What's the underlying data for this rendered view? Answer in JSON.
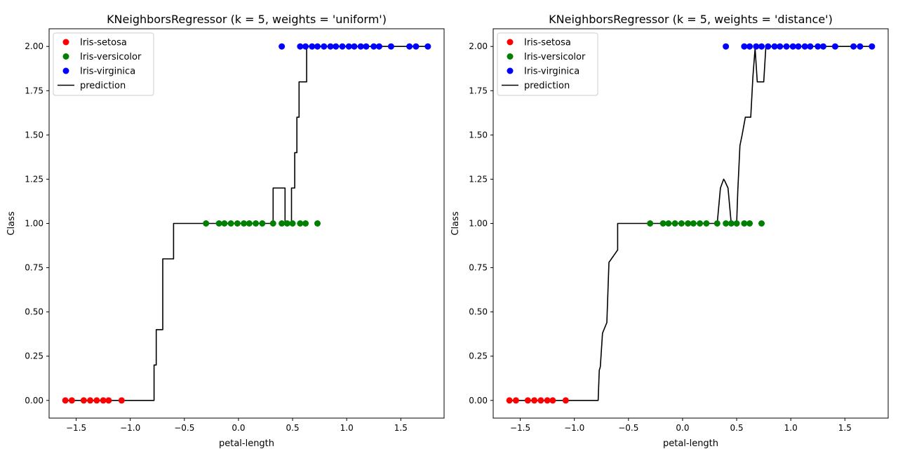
{
  "chart_data": [
    {
      "type": "scatter",
      "title": "KNeighborsRegressor (k = 5, weights = 'uniform')",
      "xlabel": "petal-length",
      "ylabel": "Class",
      "xlim": [
        -1.75,
        1.9
      ],
      "ylim": [
        -0.1,
        2.1
      ],
      "xticks": [
        -1.5,
        -1.0,
        -0.5,
        0.0,
        0.5,
        1.0,
        1.5
      ],
      "xtick_labels": [
        "−1.5",
        "−1.0",
        "−0.5",
        "0.0",
        "0.5",
        "1.0",
        "1.5"
      ],
      "yticks": [
        0.0,
        0.25,
        0.5,
        0.75,
        1.0,
        1.25,
        1.5,
        1.75,
        2.0
      ],
      "ytick_labels": [
        "0.00",
        "0.25",
        "0.50",
        "0.75",
        "1.00",
        "1.25",
        "1.50",
        "1.75",
        "2.00"
      ],
      "legend": [
        "Iris-setosa",
        "Iris-versicolor",
        "Iris-virginica",
        "prediction"
      ],
      "legend_position": "top-left",
      "grid": false,
      "series": [
        {
          "name": "Iris-setosa",
          "kind": "scatter",
          "color": "#ff0000",
          "x": [
            -1.6,
            -1.54,
            -1.43,
            -1.37,
            -1.31,
            -1.25,
            -1.2,
            -1.08
          ],
          "y": [
            0,
            0,
            0,
            0,
            0,
            0,
            0,
            0
          ]
        },
        {
          "name": "Iris-versicolor",
          "kind": "scatter",
          "color": "#008000",
          "x": [
            -0.3,
            -0.18,
            -0.13,
            -0.07,
            -0.01,
            0.05,
            0.1,
            0.16,
            0.22,
            0.32,
            0.4,
            0.45,
            0.5,
            0.57,
            0.62,
            0.73
          ],
          "y": [
            1,
            1,
            1,
            1,
            1,
            1,
            1,
            1,
            1,
            1,
            1,
            1,
            1,
            1,
            1,
            1
          ]
        },
        {
          "name": "Iris-virginica",
          "kind": "scatter",
          "color": "#0000ff",
          "x": [
            0.4,
            0.57,
            0.62,
            0.68,
            0.73,
            0.79,
            0.85,
            0.9,
            0.96,
            1.02,
            1.07,
            1.13,
            1.18,
            1.25,
            1.3,
            1.41,
            1.58,
            1.64,
            1.75
          ],
          "y": [
            2,
            2,
            2,
            2,
            2,
            2,
            2,
            2,
            2,
            2,
            2,
            2,
            2,
            2,
            2,
            2,
            2,
            2,
            2
          ]
        },
        {
          "name": "prediction",
          "kind": "line",
          "color": "#000000",
          "x": [
            -1.6,
            -0.78,
            -0.78,
            -0.76,
            -0.76,
            -0.7,
            -0.7,
            -0.6,
            -0.6,
            0.32,
            0.32,
            0.43,
            0.43,
            0.49,
            0.49,
            0.52,
            0.52,
            0.54,
            0.54,
            0.56,
            0.56,
            0.63,
            0.63,
            0.79,
            0.79,
            1.75
          ],
          "y": [
            0,
            0,
            0.2,
            0.2,
            0.4,
            0.4,
            0.8,
            0.8,
            1.0,
            1.0,
            1.2,
            1.2,
            1.0,
            1.0,
            1.2,
            1.2,
            1.4,
            1.4,
            1.6,
            1.6,
            1.8,
            1.8,
            2.0,
            2.0,
            2.0,
            2.0
          ]
        }
      ]
    },
    {
      "type": "scatter",
      "title": "KNeighborsRegressor (k = 5, weights = 'distance')",
      "xlabel": "petal-length",
      "ylabel": "Class",
      "xlim": [
        -1.75,
        1.9
      ],
      "ylim": [
        -0.1,
        2.1
      ],
      "xticks": [
        -1.5,
        -1.0,
        -0.5,
        0.0,
        0.5,
        1.0,
        1.5
      ],
      "xtick_labels": [
        "−1.5",
        "−1.0",
        "−0.5",
        "0.0",
        "0.5",
        "1.0",
        "1.5"
      ],
      "yticks": [
        0.0,
        0.25,
        0.5,
        0.75,
        1.0,
        1.25,
        1.5,
        1.75,
        2.0
      ],
      "ytick_labels": [
        "0.00",
        "0.25",
        "0.50",
        "0.75",
        "1.00",
        "1.25",
        "1.50",
        "1.75",
        "2.00"
      ],
      "legend": [
        "Iris-setosa",
        "Iris-versicolor",
        "Iris-virginica",
        "prediction"
      ],
      "legend_position": "top-left",
      "grid": false,
      "series": [
        {
          "name": "Iris-setosa",
          "kind": "scatter",
          "color": "#ff0000",
          "x": [
            -1.6,
            -1.54,
            -1.43,
            -1.37,
            -1.31,
            -1.25,
            -1.2,
            -1.08
          ],
          "y": [
            0,
            0,
            0,
            0,
            0,
            0,
            0,
            0
          ]
        },
        {
          "name": "Iris-versicolor",
          "kind": "scatter",
          "color": "#008000",
          "x": [
            -0.3,
            -0.18,
            -0.13,
            -0.07,
            -0.01,
            0.05,
            0.1,
            0.16,
            0.22,
            0.32,
            0.4,
            0.45,
            0.5,
            0.57,
            0.62,
            0.73
          ],
          "y": [
            1,
            1,
            1,
            1,
            1,
            1,
            1,
            1,
            1,
            1,
            1,
            1,
            1,
            1,
            1,
            1
          ]
        },
        {
          "name": "Iris-virginica",
          "kind": "scatter",
          "color": "#0000ff",
          "x": [
            0.4,
            0.57,
            0.62,
            0.68,
            0.73,
            0.79,
            0.85,
            0.9,
            0.96,
            1.02,
            1.07,
            1.13,
            1.18,
            1.25,
            1.3,
            1.41,
            1.58,
            1.64,
            1.75
          ],
          "y": [
            2,
            2,
            2,
            2,
            2,
            2,
            2,
            2,
            2,
            2,
            2,
            2,
            2,
            2,
            2,
            2,
            2,
            2,
            2
          ]
        },
        {
          "name": "prediction",
          "kind": "line",
          "color": "#000000",
          "x": [
            -1.6,
            -0.78,
            -0.77,
            -0.76,
            -0.74,
            -0.7,
            -0.68,
            -0.6,
            -0.6,
            0.32,
            0.35,
            0.38,
            0.39,
            0.42,
            0.45,
            0.47,
            0.5,
            0.51,
            0.53,
            0.55,
            0.58,
            0.6,
            0.63,
            0.65,
            0.67,
            0.69,
            0.73,
            0.75,
            0.77,
            1.75
          ],
          "y": [
            0,
            0,
            0.17,
            0.19,
            0.38,
            0.44,
            0.78,
            0.85,
            1.0,
            1.0,
            1.2,
            1.25,
            1.24,
            1.2,
            1.0,
            1.0,
            1.01,
            1.18,
            1.44,
            1.5,
            1.6,
            1.6,
            1.6,
            1.83,
            1.99,
            1.8,
            1.8,
            1.8,
            2.0,
            2.0
          ]
        }
      ]
    }
  ]
}
